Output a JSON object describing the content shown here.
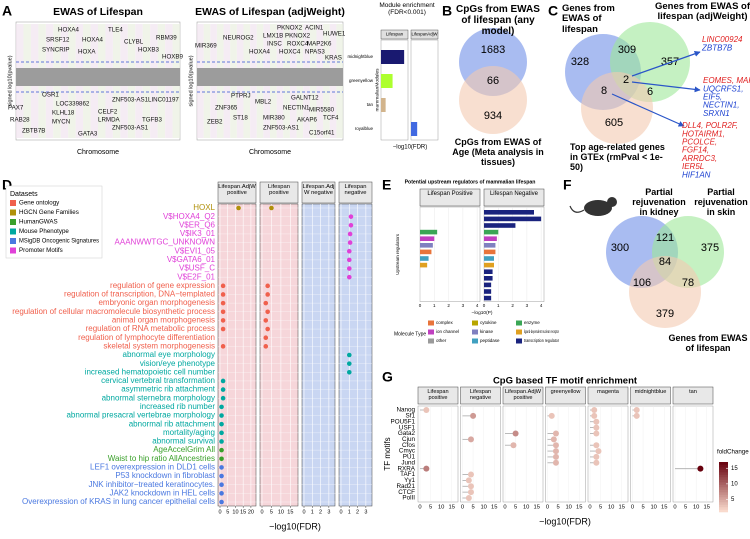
{
  "panel_labels": [
    "A",
    "B",
    "C",
    "D",
    "E",
    "F",
    "G"
  ],
  "manhattan": [
    {
      "title": "EWAS of Lifespan",
      "x_label": "Chromosome",
      "y_label": "signed log10(pvalue)",
      "genes": [
        "HOXA4",
        "TLE4",
        "SRSF12",
        "HOXA4",
        "CLYBL",
        "RBM39",
        "SYNCRIP",
        "HOXB3",
        "HOXA",
        "HOXB9",
        "OSR1",
        "PAX7",
        "LOC339862",
        "KLHL18",
        "CELF2",
        "ZNF503-AS1",
        "LINC01197",
        "RAB28",
        "ZBTB7B",
        "MYCN",
        "LRMDA",
        "TGFB3",
        "GATA3",
        "ZNF503-AS1"
      ]
    },
    {
      "title": "EWAS of Lifespan (adjWeight)",
      "x_label": "Chromosome",
      "y_label": "signed log10(pvalue)",
      "genes": [
        "PKNOX2",
        "ACIN1",
        "HUWE1",
        "NEUROG2",
        "LMX1B",
        "PKNOX2",
        "MIR369",
        "INSC",
        "ROXC4",
        "MAP2K6",
        "HOXA4",
        "HOXC4",
        "NPAS3",
        "KRAS",
        "PTPRJ",
        "MBL2",
        "ZNF365",
        "ZEB2",
        "GALNT12",
        "NECTIN1",
        "MIR5580",
        "TCF4",
        "ST18",
        "MIR380",
        "AKAP6",
        "ZNF503-AS1",
        "C15orf41"
      ]
    }
  ],
  "venn_b": {
    "sets": [
      "CpGs from EWAS of lifespan (any model)",
      "CpGs from EWAS of Age (Meta analysis in tissues)"
    ],
    "colors": [
      "#6f8fe8",
      "#f4c9b0"
    ],
    "counts": [
      1683,
      66,
      934
    ]
  },
  "venn_c": {
    "sets": [
      "Genes from EWAS of lifespan",
      "Genes from EWAS of lifespan (adjWeight)",
      "Top age-related genes in GTEx (rmPval < 1e-50)"
    ],
    "colors": [
      "#6f8fe8",
      "#9ee89a",
      "#f4c9b0"
    ],
    "counts": [
      328,
      309,
      357,
      2,
      8,
      6,
      605
    ],
    "gene_lists": [
      [
        {
          "text": "LINC00924",
          "color": "#e02020"
        },
        {
          "text": "ZBTB7B",
          "color": "#1a3fd0"
        }
      ],
      [
        {
          "text": "EOMES, MAFF",
          "color": "#e02020"
        },
        {
          "text": "UQCRFS1,",
          "color": "#1a3fd0"
        },
        {
          "text": "EIF5,",
          "color": "#1a3fd0"
        },
        {
          "text": "NECTIN1,",
          "color": "#1a3fd0"
        },
        {
          "text": "SRXN1",
          "color": "#1a3fd0"
        }
      ],
      [
        {
          "text": "DLL4, POLR2F,",
          "color": "#e02020"
        },
        {
          "text": "HOTAIRM1,",
          "color": "#e02020"
        },
        {
          "text": "PCOLCE,",
          "color": "#e02020"
        },
        {
          "text": "FGF14,",
          "color": "#e02020"
        },
        {
          "text": "ARRDC3,",
          "color": "#e02020"
        },
        {
          "text": "IER5L",
          "color": "#e02020"
        },
        {
          "text": "HIF1AN",
          "color": "#1a3fd0"
        }
      ]
    ]
  },
  "venn_f": {
    "sets": [
      "Partial rejuvenation in kidney",
      "Partial rejuvenation in skin",
      "Genes from EWAS of lifespan"
    ],
    "colors": [
      "#6f8fe8",
      "#9ee89a",
      "#f4c9b0"
    ],
    "counts": [
      300,
      121,
      375,
      84,
      106,
      78,
      379
    ]
  },
  "chart_data": [
    {
      "type": "bar",
      "title": "Module enrichment (FDR<0.001)",
      "y_label": "mammalianModules",
      "x_label": "−log10(FDR)",
      "categories": [
        "midnightblue",
        "greenyellow",
        "tan",
        "royalblue"
      ],
      "colors": [
        "#191970",
        "#adff2f",
        "#d2b48c",
        "#4169e1"
      ],
      "series": [
        {
          "name": "Lifespan",
          "values": [
            30,
            15,
            6,
            null
          ]
        },
        {
          "name": "LifespanAdjW",
          "values": [
            null,
            null,
            null,
            8
          ]
        }
      ],
      "xlim": [
        0,
        35
      ]
    },
    {
      "type": "dot",
      "legend_title": "Datasets",
      "datasets": [
        "Gene ontology",
        "HGCN Gene Families",
        "HumanGWAS",
        "Mouse Phenotype",
        "MSigDB Oncogenic Signatures",
        "Promoter Motifs"
      ],
      "dataset_colors": [
        "#f0604d",
        "#b0900a",
        "#3aa02a",
        "#00a8a0",
        "#4a78e0",
        "#e040d8"
      ],
      "facets": [
        "Lifespan.AdjW positive",
        "Lifespan positive",
        "Lifespan.Adj W negative",
        "Lifespan negative"
      ],
      "facet_colors": [
        "#f6d6da",
        "#f6d6da",
        "#c9d6f2",
        "#c9d6f2"
      ],
      "facet_xlim": [
        [
          0,
          22
        ],
        [
          0,
          18
        ],
        [
          0,
          3.5
        ],
        [
          0,
          3.5
        ]
      ],
      "facet_xticks": [
        [
          0,
          5,
          10,
          15,
          20
        ],
        [
          0,
          5,
          10,
          15
        ],
        [
          0,
          1,
          2,
          3
        ],
        [
          0,
          1,
          2,
          3
        ]
      ],
      "x_label": "−log10(FDR)",
      "terms": [
        "HOXL",
        "V$HOXA4_Q2",
        "V$ER_Q6",
        "V$IK3_01",
        "AAANWWTGC_UNKNOWN",
        "V$EVI1_05",
        "V$GATA6_01",
        "V$USF_C",
        "V$E2F_01",
        "regulation of gene expression",
        "regulation of transcription, DNA−templated",
        "embryonic organ morphogenesis",
        "regulation of cellular macromolecule biosynthetic process",
        "animal organ morphogenesis",
        "regulation of RNA metabolic process",
        "regulation of lymphocyte differentiation",
        "skeletal system morphogenesis",
        "abnormal eye morphology",
        "vision/eye phenotype",
        "increased hematopoietic cell number",
        "cervical vertebral transformation",
        "asymmetric rib attachment",
        "abnormal sternebra morphology",
        "increased rib number",
        "abnormal presacral vertebrae morphology",
        "abnormal rib attachment",
        "mortality/aging",
        "abnormal survival",
        "AgeAccelGrim All",
        "Waist to hip ratio AllAncestries",
        "LEF1 overexpression in DLD1 cells",
        "P53 knockdown in fibroblast",
        "JNK inhibitor−treated keratinocytes.",
        "JAK2 knockdown in HEL cells",
        "Overexpression of KRAS in lung cancer epithelial cells"
      ],
      "term_dataset": [
        1,
        5,
        5,
        5,
        5,
        5,
        5,
        5,
        5,
        0,
        0,
        0,
        0,
        0,
        0,
        0,
        0,
        3,
        3,
        3,
        3,
        3,
        3,
        3,
        3,
        3,
        3,
        3,
        2,
        2,
        4,
        4,
        4,
        4,
        4
      ],
      "points": [
        {
          "term": 0,
          "facet": 0,
          "value": 12
        },
        {
          "term": 0,
          "facet": 1,
          "value": 5
        },
        {
          "term": 1,
          "facet": 3,
          "value": 1.2
        },
        {
          "term": 2,
          "facet": 3,
          "value": 1.2
        },
        {
          "term": 3,
          "facet": 3,
          "value": 1.1
        },
        {
          "term": 4,
          "facet": 3,
          "value": 1.1
        },
        {
          "term": 5,
          "facet": 3,
          "value": 1.0
        },
        {
          "term": 6,
          "facet": 3,
          "value": 1.0
        },
        {
          "term": 7,
          "facet": 3,
          "value": 1.0
        },
        {
          "term": 8,
          "facet": 3,
          "value": 1.0
        },
        {
          "term": 9,
          "facet": 0,
          "value": 2
        },
        {
          "term": 9,
          "facet": 1,
          "value": 3
        },
        {
          "term": 10,
          "facet": 0,
          "value": 2
        },
        {
          "term": 10,
          "facet": 1,
          "value": 3
        },
        {
          "term": 11,
          "facet": 0,
          "value": 2
        },
        {
          "term": 11,
          "facet": 1,
          "value": 2
        },
        {
          "term": 12,
          "facet": 0,
          "value": 2
        },
        {
          "term": 12,
          "facet": 1,
          "value": 3
        },
        {
          "term": 13,
          "facet": 0,
          "value": 2
        },
        {
          "term": 13,
          "facet": 1,
          "value": 2
        },
        {
          "term": 14,
          "facet": 0,
          "value": 2
        },
        {
          "term": 14,
          "facet": 1,
          "value": 3
        },
        {
          "term": 15,
          "facet": 1,
          "value": 2
        },
        {
          "term": 16,
          "facet": 0,
          "value": 2
        },
        {
          "term": 16,
          "facet": 1,
          "value": 2
        },
        {
          "term": 17,
          "facet": 3,
          "value": 1.0
        },
        {
          "term": 18,
          "facet": 3,
          "value": 1.0
        },
        {
          "term": 19,
          "facet": 3,
          "value": 1.0
        },
        {
          "term": 20,
          "facet": 0,
          "value": 2
        },
        {
          "term": 21,
          "facet": 0,
          "value": 2
        },
        {
          "term": 22,
          "facet": 0,
          "value": 2
        },
        {
          "term": 23,
          "facet": 0,
          "value": 1
        },
        {
          "term": 24,
          "facet": 0,
          "value": 1
        },
        {
          "term": 25,
          "facet": 0,
          "value": 1
        },
        {
          "term": 26,
          "facet": 0,
          "value": 1
        },
        {
          "term": 27,
          "facet": 0,
          "value": 1
        },
        {
          "term": 28,
          "facet": 0,
          "value": 1
        },
        {
          "term": 29,
          "facet": 0,
          "value": 1
        },
        {
          "term": 30,
          "facet": 0,
          "value": 1
        },
        {
          "term": 31,
          "facet": 0,
          "value": 1
        },
        {
          "term": 32,
          "facet": 0,
          "value": 1
        },
        {
          "term": 33,
          "facet": 0,
          "value": 1
        },
        {
          "term": 34,
          "facet": 0,
          "value": 1
        }
      ]
    },
    {
      "type": "hbar",
      "title": "Potential upstream regulators of mammalian lifespan",
      "y_label": "Upstream regulators",
      "x_label": "−log10(P)",
      "categories": [
        null,
        null,
        null,
        null,
        null,
        null,
        null,
        null,
        null,
        null,
        null,
        null,
        null,
        null
      ],
      "series": [
        {
          "name": "Lifespan Positive",
          "values": [
            null,
            null,
            null,
            1.2,
            1.0,
            0.9,
            0.8,
            0.6,
            0.5,
            null,
            null,
            null,
            null,
            null
          ]
        },
        {
          "name": "Lifespan Negative",
          "values": [
            3.5,
            4.0,
            2.2,
            1.0,
            0.9,
            0.8,
            0.8,
            0.7,
            0.7,
            0.6,
            0.6,
            0.5,
            0.5,
            0.5
          ]
        }
      ],
      "row_types": [
        8,
        8,
        8,
        2,
        3,
        4,
        0,
        7,
        5,
        8,
        8,
        8,
        8,
        8
      ],
      "legend_title": "Molecule Type",
      "types": [
        "complex",
        "cytokine",
        "enzyme",
        "ion channel",
        "kinase",
        "ligand-dependent nuclear receptor",
        "other",
        "peptidase",
        "transcription regulator"
      ],
      "type_colors": [
        "#e8743b",
        "#b8a600",
        "#3aa655",
        "#c040c0",
        "#8080c0",
        "#e0a020",
        "#9a9a9a",
        "#40a0c0",
        "#1a237e"
      ],
      "xlim": [
        0,
        4.2
      ],
      "xticks": [
        0,
        1,
        2,
        3,
        4
      ]
    },
    {
      "type": "lollipop",
      "title": "CpG based TF motif enrichment",
      "y_label": "TF motifs",
      "x_label": "−log10(FDR)",
      "facets": [
        "Lifespan positive",
        "Lifespan negative",
        "Lifespan.AdjW positive",
        "greenyellow",
        "magenta",
        "midnightblue",
        "tan"
      ],
      "tfs": [
        "Nanog",
        "Sf1",
        "POU5F1",
        "USF1",
        "Gata2",
        "Cjun",
        "Cfos",
        "Cmyc",
        "PU1",
        "Jund",
        "RXRA",
        "TAF1",
        "Yy1",
        "Rad21",
        "CTCF",
        "PolII"
      ],
      "xlim": [
        0,
        17
      ],
      "xticks": [
        0,
        5,
        10,
        15
      ],
      "legend_title": "foldChange",
      "legend_ticks": [
        5,
        10,
        15
      ],
      "color_lim": [
        1,
        17
      ],
      "color_low": "#fde0d2",
      "color_high": "#67000d",
      "points": [
        {
          "tf": 0,
          "facet": 0,
          "value": 3,
          "fold": 3
        },
        {
          "tf": 10,
          "facet": 0,
          "value": 3,
          "fold": 8
        },
        {
          "tf": 1,
          "facet": 1,
          "value": 5,
          "fold": 6
        },
        {
          "tf": 5,
          "facet": 1,
          "value": 4,
          "fold": 5
        },
        {
          "tf": 11,
          "facet": 1,
          "value": 4,
          "fold": 3
        },
        {
          "tf": 12,
          "facet": 1,
          "value": 3,
          "fold": 3
        },
        {
          "tf": 13,
          "facet": 1,
          "value": 4,
          "fold": 3
        },
        {
          "tf": 14,
          "facet": 1,
          "value": 4,
          "fold": 3
        },
        {
          "tf": 15,
          "facet": 1,
          "value": 3,
          "fold": 3
        },
        {
          "tf": 4,
          "facet": 2,
          "value": 5,
          "fold": 7
        },
        {
          "tf": 6,
          "facet": 2,
          "value": 4,
          "fold": 4
        },
        {
          "tf": 1,
          "facet": 3,
          "value": 2,
          "fold": 3
        },
        {
          "tf": 4,
          "facet": 3,
          "value": 4,
          "fold": 4
        },
        {
          "tf": 5,
          "facet": 3,
          "value": 3,
          "fold": 4
        },
        {
          "tf": 6,
          "facet": 3,
          "value": 4,
          "fold": 4
        },
        {
          "tf": 7,
          "facet": 3,
          "value": 4,
          "fold": 4
        },
        {
          "tf": 8,
          "facet": 3,
          "value": 4,
          "fold": 4
        },
        {
          "tf": 9,
          "facet": 3,
          "value": 4,
          "fold": 4
        },
        {
          "tf": 0,
          "facet": 4,
          "value": 2,
          "fold": 3
        },
        {
          "tf": 1,
          "facet": 4,
          "value": 2,
          "fold": 3
        },
        {
          "tf": 2,
          "facet": 4,
          "value": 3,
          "fold": 3
        },
        {
          "tf": 3,
          "facet": 4,
          "value": 3,
          "fold": 3
        },
        {
          "tf": 4,
          "facet": 4,
          "value": 3,
          "fold": 3
        },
        {
          "tf": 6,
          "facet": 4,
          "value": 3,
          "fold": 3
        },
        {
          "tf": 7,
          "facet": 4,
          "value": 4,
          "fold": 3
        },
        {
          "tf": 8,
          "facet": 4,
          "value": 3,
          "fold": 3
        },
        {
          "tf": 9,
          "facet": 4,
          "value": 3,
          "fold": 3
        },
        {
          "tf": 0,
          "facet": 5,
          "value": 2,
          "fold": 3
        },
        {
          "tf": 1,
          "facet": 5,
          "value": 2,
          "fold": 3
        },
        {
          "tf": 10,
          "facet": 6,
          "value": 12,
          "fold": 17
        }
      ]
    }
  ]
}
